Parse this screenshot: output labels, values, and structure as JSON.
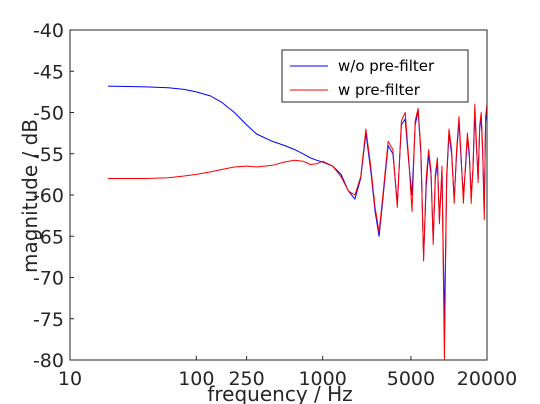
{
  "chart_data": {
    "type": "line",
    "title": "",
    "xlabel": "frequency / Hz",
    "ylabel": "magnitude / dB",
    "x_scale": "log",
    "xlim": [
      10,
      20000
    ],
    "ylim": [
      -80,
      -40
    ],
    "x_ticks": [
      10,
      100,
      250,
      1000,
      5000,
      20000
    ],
    "x_tick_labels": [
      "10",
      "100",
      "250",
      "1000",
      "5000",
      "20000"
    ],
    "y_ticks": [
      -80,
      -75,
      -70,
      -65,
      -60,
      -55,
      -50,
      -45,
      -40
    ],
    "y_tick_labels": [
      "-80",
      "-75",
      "-70",
      "-65",
      "-60",
      "-55",
      "-50",
      "-45",
      "-40"
    ],
    "grid": false,
    "legend_position": "top-right",
    "series": [
      {
        "name": "w/o pre-filter",
        "color": "#0000ff",
        "x": [
          20,
          40,
          60,
          80,
          100,
          130,
          160,
          200,
          250,
          300,
          400,
          500,
          600,
          700,
          800,
          900,
          1000,
          1200,
          1400,
          1600,
          1800,
          2000,
          2200,
          2400,
          2600,
          2800,
          3000,
          3300,
          3600,
          3900,
          4200,
          4500,
          4800,
          5100,
          5400,
          5700,
          6000,
          6300,
          6600,
          6900,
          7200,
          7500,
          7800,
          8100,
          8400,
          8800,
          9200,
          9600,
          10000,
          10500,
          11000,
          11500,
          12000,
          12500,
          13000,
          13500,
          14000,
          14500,
          15000,
          15500,
          16000,
          16500,
          17000,
          17500,
          18000,
          18500,
          19000,
          19500,
          20000
        ],
        "y": [
          -46.8,
          -46.9,
          -47.0,
          -47.2,
          -47.5,
          -48.0,
          -48.8,
          -50.0,
          -51.5,
          -52.6,
          -53.5,
          -54.0,
          -54.5,
          -55.0,
          -55.5,
          -55.8,
          -56.0,
          -56.5,
          -57.5,
          -59.5,
          -60.5,
          -58.0,
          -52.5,
          -57.0,
          -62.0,
          -65.0,
          -60.5,
          -54.0,
          -55.0,
          -61.0,
          -51.5,
          -50.8,
          -56.0,
          -60.0,
          -51.5,
          -49.8,
          -55.0,
          -67.5,
          -59.0,
          -55.0,
          -57.5,
          -65.5,
          -58.0,
          -56.0,
          -63.0,
          -57.0,
          -75.8,
          -58.0,
          -52.5,
          -55.0,
          -60.5,
          -55.0,
          -51.0,
          -56.0,
          -60.0,
          -57.0,
          -53.0,
          -55.5,
          -60.0,
          -57.0,
          -50.0,
          -54.0,
          -58.0,
          -52.0,
          -50.5,
          -55.0,
          -62.0,
          -51.0,
          -50.0
        ]
      },
      {
        "name": "w pre-filter",
        "color": "#ff0000",
        "x": [
          20,
          40,
          60,
          80,
          100,
          130,
          160,
          200,
          250,
          300,
          400,
          500,
          600,
          700,
          800,
          900,
          1000,
          1200,
          1400,
          1600,
          1800,
          2000,
          2200,
          2400,
          2600,
          2800,
          3000,
          3300,
          3600,
          3900,
          4200,
          4500,
          4800,
          5100,
          5400,
          5700,
          6000,
          6300,
          6600,
          6900,
          7200,
          7500,
          7800,
          8100,
          8400,
          8800,
          9200,
          9600,
          10000,
          10500,
          11000,
          11500,
          12000,
          12500,
          13000,
          13500,
          14000,
          14500,
          15000,
          15500,
          16000,
          16500,
          17000,
          17500,
          18000,
          18500,
          19000,
          19500,
          20000
        ],
        "y": [
          -58.0,
          -58.0,
          -57.9,
          -57.7,
          -57.5,
          -57.2,
          -56.9,
          -56.6,
          -56.5,
          -56.6,
          -56.4,
          -56.0,
          -55.8,
          -55.9,
          -56.3,
          -56.2,
          -55.9,
          -56.5,
          -57.8,
          -59.5,
          -60.0,
          -57.8,
          -52.0,
          -56.5,
          -61.5,
          -64.5,
          -60.0,
          -53.5,
          -54.5,
          -61.5,
          -51.0,
          -50.0,
          -55.5,
          -62.0,
          -51.0,
          -49.5,
          -54.5,
          -68.0,
          -58.0,
          -54.5,
          -57.0,
          -66.0,
          -57.5,
          -55.5,
          -63.5,
          -56.5,
          -80.0,
          -57.5,
          -52.0,
          -54.5,
          -61.0,
          -54.5,
          -50.5,
          -55.5,
          -61.0,
          -56.5,
          -52.5,
          -55.0,
          -61.0,
          -56.5,
          -49.0,
          -53.5,
          -58.5,
          -51.5,
          -50.0,
          -54.5,
          -63.0,
          -50.5,
          -49.0
        ]
      }
    ]
  }
}
